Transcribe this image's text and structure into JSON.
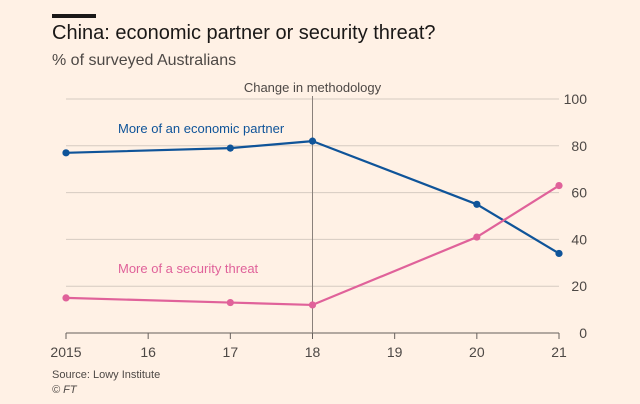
{
  "chart_data": {
    "type": "line",
    "title": "China: economic partner or security threat?",
    "subtitle": "% of surveyed Australians",
    "x": [
      2015,
      2017,
      2018,
      2020,
      2021
    ],
    "x_tick_values": [
      2015,
      2016,
      2017,
      2018,
      2019,
      2020,
      2021
    ],
    "x_tick_labels": [
      "2015",
      "16",
      "17",
      "18",
      "19",
      "20",
      "21"
    ],
    "xlim": [
      2015,
      2021
    ],
    "ylim": [
      0,
      100
    ],
    "y_ticks": [
      0,
      20,
      40,
      60,
      80,
      100
    ],
    "y_axis_side": "right",
    "series": [
      {
        "name": "More of an economic partner",
        "color": "#0f5499",
        "values": [
          77,
          79,
          82,
          55,
          34
        ]
      },
      {
        "name": "More of a security threat",
        "color": "#e0629a",
        "values": [
          15,
          13,
          12,
          41,
          63
        ]
      }
    ],
    "annotation": {
      "text": "Change in methodology",
      "x": 2018
    },
    "grid": true
  },
  "source": "Source: Lowy Institute",
  "credit": "© FT",
  "colors": {
    "background": "#fff1e5",
    "grid": "#d6cbc1",
    "axis": "#66605c",
    "text": "#4d4845"
  }
}
